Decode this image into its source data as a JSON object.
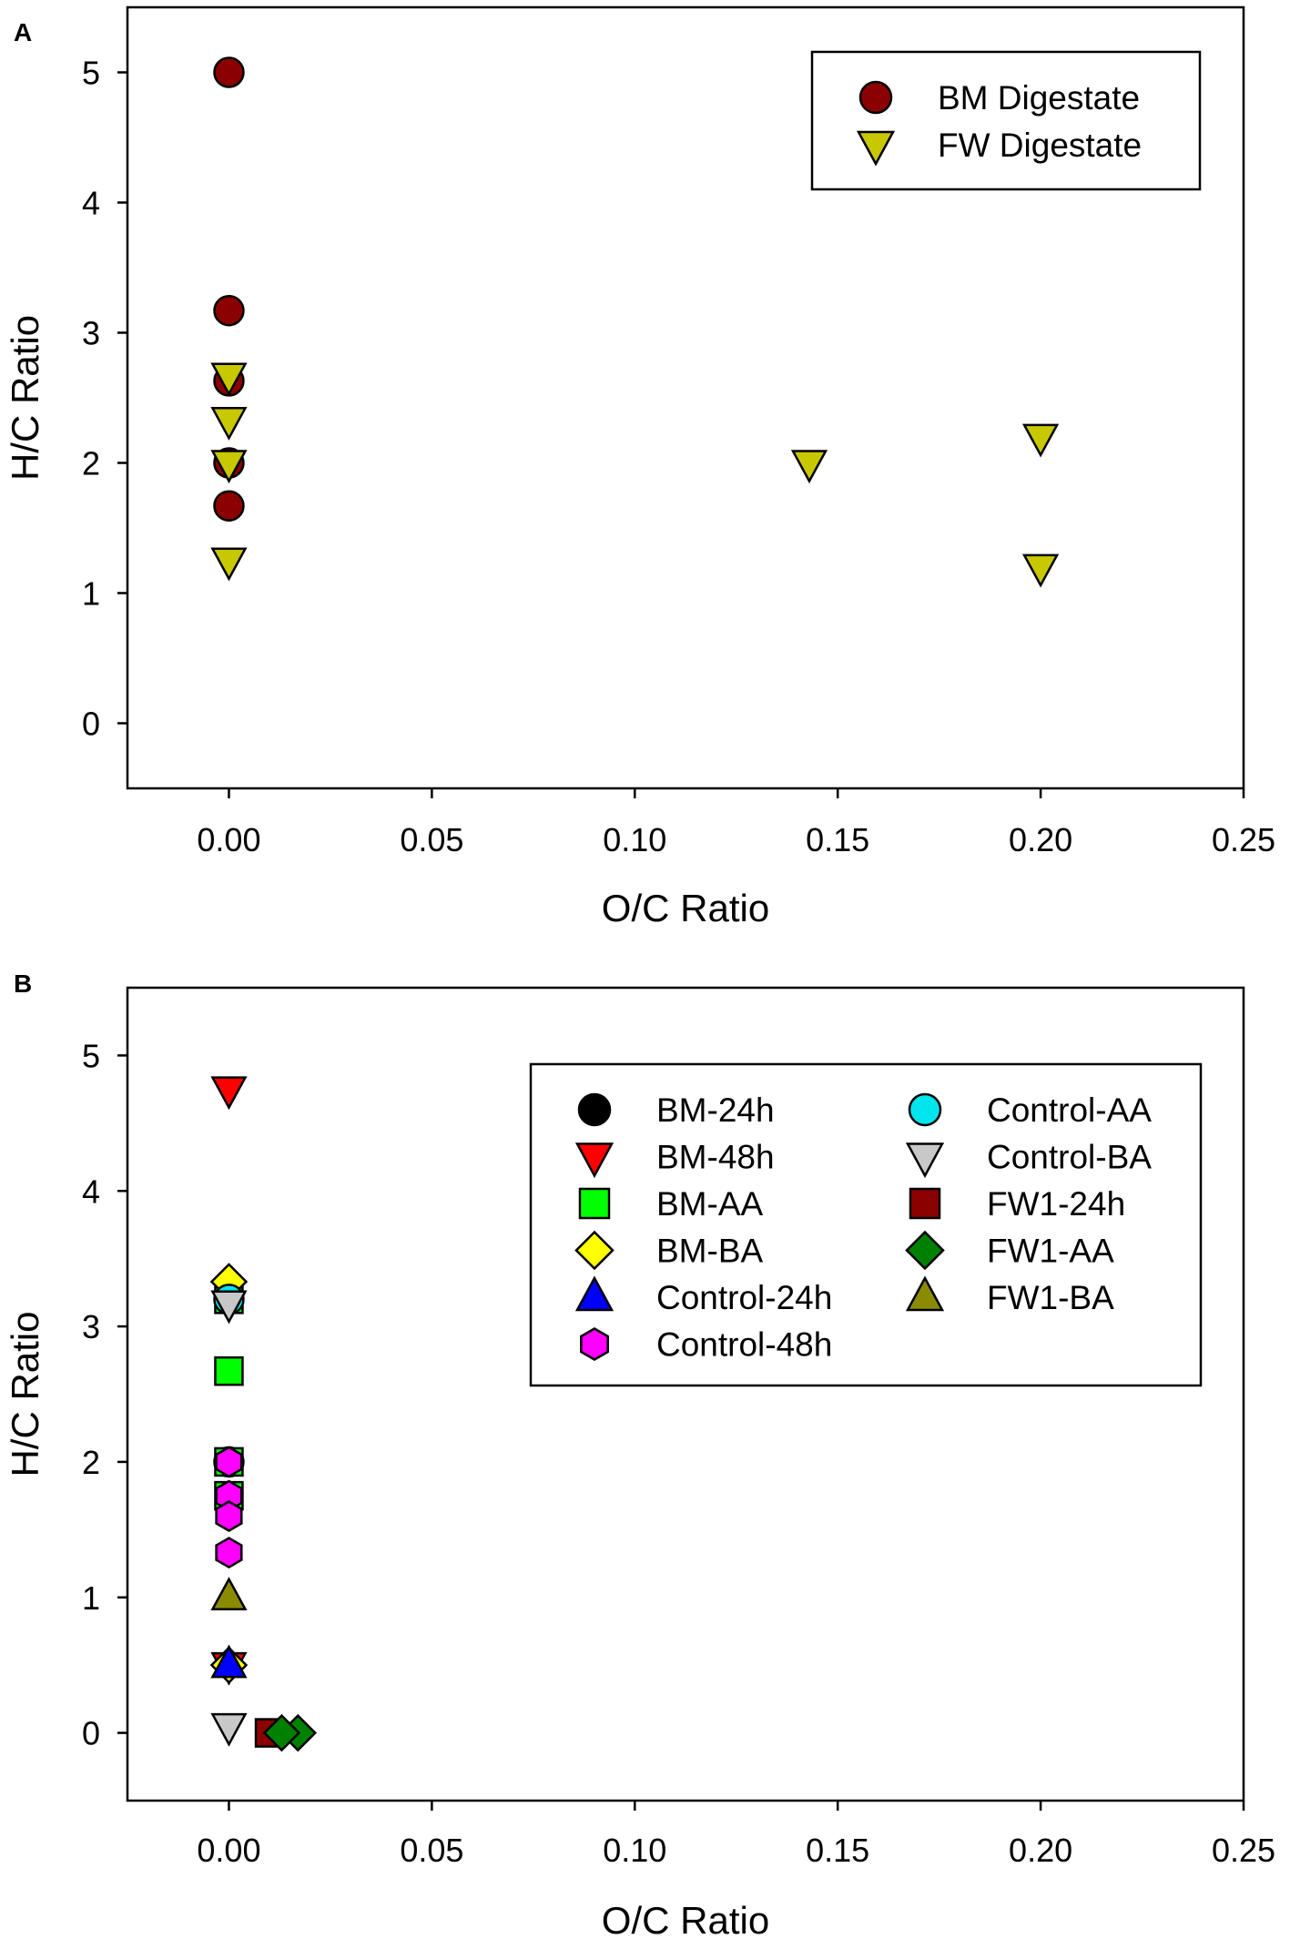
{
  "chart_data": [
    {
      "type": "scatter",
      "panel_label": "A",
      "xlabel": "O/C Ratio",
      "ylabel": "H/C Ratio",
      "xlim": [
        -0.025,
        0.25
      ],
      "ylim": [
        -0.5,
        5.5
      ],
      "xticks": [
        "0.00",
        "0.05",
        "0.10",
        "0.15",
        "0.20",
        "0.25"
      ],
      "yticks": [
        "0",
        "1",
        "2",
        "3",
        "4",
        "5"
      ],
      "legend_position": "top-right",
      "series": [
        {
          "name": "BM Digestate",
          "marker": "circle",
          "color": "#8b0000",
          "points": [
            [
              0,
              5.0
            ],
            [
              0,
              3.17
            ],
            [
              0,
              2.63
            ],
            [
              0,
              2.0
            ],
            [
              0,
              1.67
            ]
          ]
        },
        {
          "name": "FW Digestate",
          "marker": "triangle-down",
          "color": "#c8c800",
          "points": [
            [
              0,
              2.67
            ],
            [
              0,
              2.33
            ],
            [
              0,
              2.0
            ],
            [
              0,
              1.25
            ],
            [
              0.143,
              2.0
            ],
            [
              0.2,
              2.2
            ],
            [
              0.2,
              1.2
            ]
          ]
        }
      ]
    },
    {
      "type": "scatter",
      "panel_label": "B",
      "xlabel": "O/C Ratio",
      "ylabel": "H/C Ratio",
      "xlim": [
        -0.025,
        0.25
      ],
      "ylim": [
        -0.5,
        5.5
      ],
      "xticks": [
        "0.00",
        "0.05",
        "0.10",
        "0.15",
        "0.20",
        "0.25"
      ],
      "yticks": [
        "0",
        "1",
        "2",
        "3",
        "4",
        "5"
      ],
      "legend_position": "top-right",
      "series": [
        {
          "name": "BM-24h",
          "marker": "circle",
          "color": "#000000",
          "points": [
            [
              0,
              2.0
            ]
          ]
        },
        {
          "name": "BM-48h",
          "marker": "triangle-down",
          "color": "#ff0000",
          "points": [
            [
              0,
              4.75
            ],
            [
              0,
              0.5
            ]
          ]
        },
        {
          "name": "BM-AA",
          "marker": "square",
          "color": "#00ff00",
          "points": [
            [
              0,
              2.67
            ],
            [
              0,
              2.0
            ],
            [
              0,
              1.75
            ],
            [
              0,
              3.2
            ]
          ]
        },
        {
          "name": "BM-BA",
          "marker": "diamond",
          "color": "#ffff00",
          "points": [
            [
              0,
              3.33
            ],
            [
              0,
              0.5
            ]
          ]
        },
        {
          "name": "Control-24h",
          "marker": "triangle-up",
          "color": "#0000ff",
          "points": [
            [
              0,
              0.5
            ]
          ]
        },
        {
          "name": "Control-48h",
          "marker": "hexagon",
          "color": "#ff00ff",
          "points": [
            [
              0,
              2.0
            ],
            [
              0,
              1.75
            ],
            [
              0,
              1.6
            ],
            [
              0,
              1.33
            ]
          ]
        },
        {
          "name": "Control-AA",
          "marker": "circle",
          "color": "#00e5ee",
          "points": [
            [
              0,
              3.2
            ]
          ]
        },
        {
          "name": "Control-BA",
          "marker": "triangle-down",
          "color": "#c8c8c8",
          "points": [
            [
              0,
              3.17
            ],
            [
              0,
              0.05
            ]
          ]
        },
        {
          "name": "FW1-24h",
          "marker": "square",
          "color": "#8b0000",
          "points": [
            [
              0.01,
              0
            ]
          ]
        },
        {
          "name": "FW1-AA",
          "marker": "diamond",
          "color": "#008000",
          "points": [
            [
              0.017,
              0
            ],
            [
              0.013,
              0
            ]
          ]
        },
        {
          "name": "FW1-BA",
          "marker": "triangle-up",
          "color": "#8b8b00",
          "points": [
            [
              0,
              1.0
            ]
          ]
        }
      ]
    }
  ]
}
